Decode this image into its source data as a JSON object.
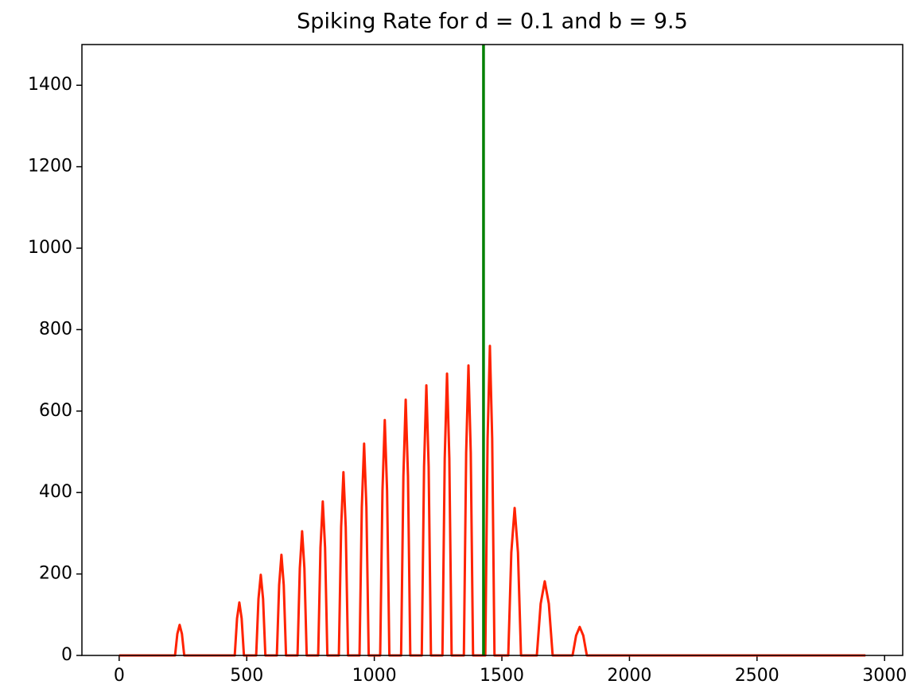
{
  "chart_data": {
    "type": "line",
    "title": "Spiking Rate for d = 0.1 and b = 9.5",
    "x": [
      0,
      219,
      228,
      237,
      246,
      255,
      453,
      462,
      471,
      480,
      489,
      537,
      546,
      555,
      564,
      573,
      618,
      627,
      636,
      645,
      654,
      699,
      708,
      717,
      726,
      735,
      780,
      789,
      798,
      807,
      816,
      861,
      870,
      879,
      888,
      897,
      942,
      951,
      960,
      969,
      978,
      1023,
      1032,
      1041,
      1050,
      1059,
      1105,
      1114,
      1123,
      1132,
      1141,
      1186,
      1195,
      1204,
      1213,
      1222,
      1267,
      1276,
      1285,
      1294,
      1303,
      1351,
      1360,
      1369,
      1378,
      1387,
      1435,
      1444,
      1453,
      1462,
      1471,
      1525,
      1537,
      1550,
      1563,
      1575,
      1637,
      1652,
      1668,
      1684,
      1699,
      1777,
      1791,
      1805,
      1819,
      1833,
      2925
    ],
    "values": [
      0,
      0,
      53,
      75,
      53,
      0,
      0,
      91,
      130,
      91,
      0,
      0,
      139,
      198,
      139,
      0,
      0,
      173,
      247,
      173,
      0,
      0,
      214,
      305,
      214,
      0,
      0,
      265,
      378,
      265,
      0,
      0,
      315,
      450,
      315,
      0,
      0,
      364,
      520,
      364,
      0,
      0,
      405,
      578,
      405,
      0,
      0,
      440,
      628,
      440,
      0,
      0,
      464,
      663,
      464,
      0,
      0,
      484,
      692,
      484,
      0,
      0,
      498,
      712,
      498,
      0,
      0,
      532,
      760,
      532,
      0,
      0,
      253,
      362,
      253,
      0,
      0,
      127,
      182,
      127,
      0,
      0,
      49,
      70,
      49,
      0,
      0
    ],
    "color": "#ff2200",
    "vline": {
      "x": 1428,
      "color": "#008000"
    },
    "xlim": [
      -146,
      3071
    ],
    "xticks": [
      0,
      500,
      1000,
      1500,
      2000,
      2500,
      3000
    ],
    "ylim": [
      0,
      1500
    ],
    "yticks": [
      0,
      200,
      400,
      600,
      800,
      1000,
      1200,
      1400
    ]
  }
}
